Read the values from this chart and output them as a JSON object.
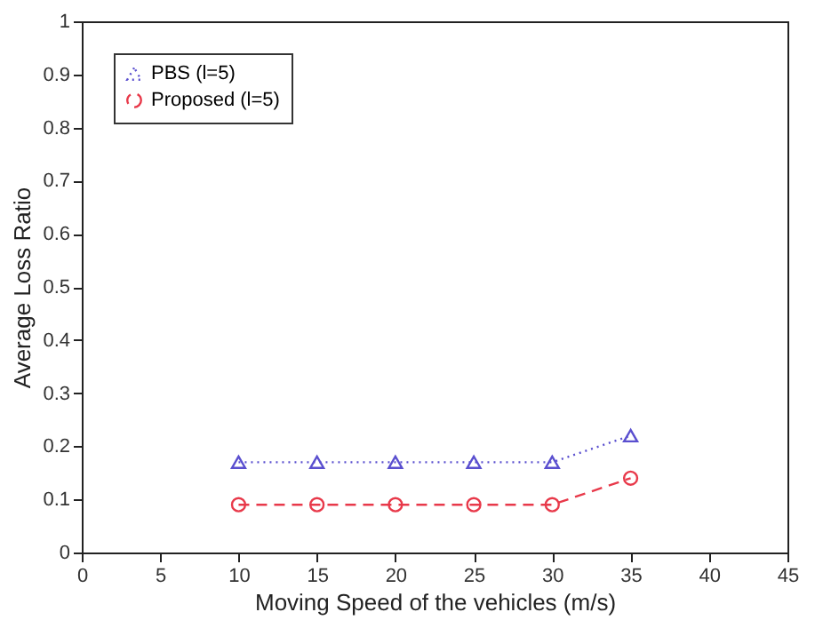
{
  "chart_data": {
    "type": "line",
    "xlabel": "Moving Speed of the vehicles (m/s)",
    "ylabel": "Average Loss Ratio",
    "x": [
      10,
      15,
      20,
      25,
      30,
      35
    ],
    "series": [
      {
        "name": "PBS (l=5)",
        "color": "#5a4fcf",
        "values": [
          0.17,
          0.17,
          0.17,
          0.17,
          0.17,
          0.22
        ],
        "marker": "triangle",
        "line_style": "dotted"
      },
      {
        "name": "Proposed (l=5)",
        "color": "#e8394a",
        "values": [
          0.09,
          0.09,
          0.09,
          0.09,
          0.09,
          0.14
        ],
        "marker": "circle",
        "line_style": "dashed"
      }
    ],
    "xlim": [
      0,
      45
    ],
    "xticks": [
      0,
      5,
      10,
      15,
      20,
      25,
      30,
      35,
      40,
      45
    ],
    "ylim": [
      0,
      1
    ],
    "yticks": [
      0,
      0.1,
      0.2,
      0.3,
      0.4,
      0.5,
      0.6,
      0.7,
      0.8,
      0.9,
      1
    ],
    "legend": "top left",
    "grid": false
  }
}
